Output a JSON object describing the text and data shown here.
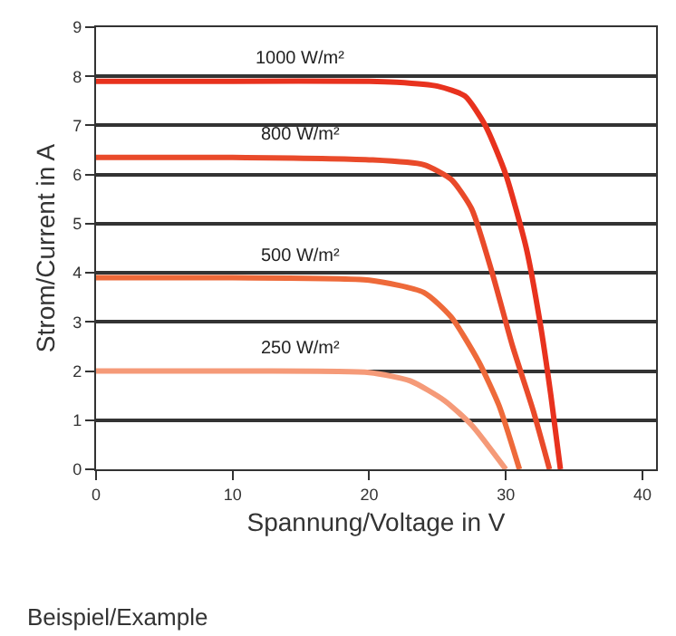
{
  "chart_data": {
    "type": "line",
    "xlabel": "Spannung/Voltage in V",
    "ylabel": "Strom/Current in A",
    "xlim": [
      0,
      41
    ],
    "xticks": [
      0,
      10,
      20,
      30,
      40
    ],
    "ylim": [
      0,
      9
    ],
    "yticks": [
      0,
      1,
      2,
      3,
      4,
      5,
      6,
      7,
      8,
      9
    ],
    "grid": "y",
    "legend": false,
    "marker": "none",
    "line_style": "solid",
    "annotations": [
      "Beispiel/Example"
    ],
    "series": [
      {
        "name": "1000 W/m²",
        "color": "#e8321e",
        "x": [
          0,
          10,
          20,
          22,
          25,
          27,
          28.5,
          30,
          31.5,
          32.5,
          33.3,
          34
        ],
        "values": [
          7.9,
          7.9,
          7.9,
          7.88,
          7.8,
          7.6,
          7.0,
          6.0,
          4.5,
          3.0,
          1.5,
          0
        ]
      },
      {
        "name": "800 W/m²",
        "color": "#e94a2a",
        "x": [
          0,
          10,
          20,
          24,
          26,
          27.5,
          29,
          30.5,
          32,
          33.2
        ],
        "values": [
          6.35,
          6.35,
          6.3,
          6.2,
          5.9,
          5.3,
          4.0,
          2.5,
          1.2,
          0
        ]
      },
      {
        "name": "500 W/m²",
        "color": "#ee6a3a",
        "x": [
          0,
          10,
          20,
          24,
          26,
          28,
          29.5,
          31
        ],
        "values": [
          3.9,
          3.9,
          3.85,
          3.6,
          3.1,
          2.2,
          1.3,
          0
        ]
      },
      {
        "name": "250 W/m²",
        "color": "#f59a78",
        "x": [
          0,
          10,
          20,
          23,
          25.5,
          27.5,
          30
        ],
        "values": [
          2.0,
          2.0,
          1.97,
          1.8,
          1.4,
          0.9,
          0
        ]
      }
    ]
  }
}
